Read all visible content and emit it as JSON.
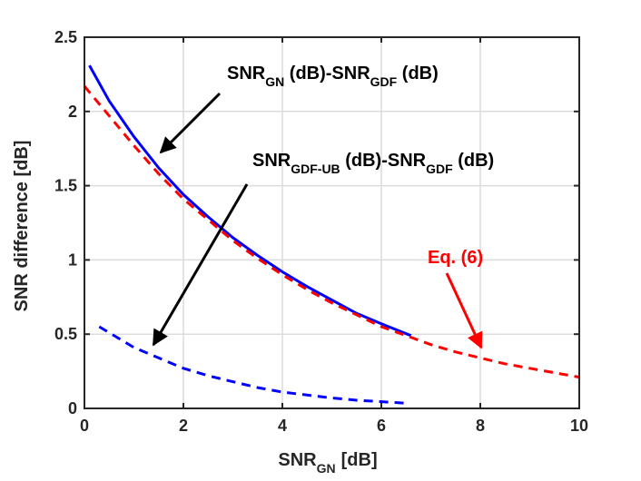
{
  "chart_data": {
    "type": "line",
    "xlim": [
      0,
      10
    ],
    "ylim": [
      0,
      2.5
    ],
    "x_ticks": [
      0,
      2,
      4,
      6,
      8,
      10
    ],
    "y_ticks": [
      0,
      0.5,
      1,
      1.5,
      2,
      2.5
    ],
    "x_tick_labels": [
      "0",
      "2",
      "4",
      "6",
      "8",
      "10"
    ],
    "y_tick_labels": [
      "0",
      "0.5",
      "1",
      "1.5",
      "2",
      "2.5"
    ],
    "xlabel": {
      "main": "SNR",
      "sub": "GN",
      "suffix": "[dB]"
    },
    "ylabel": "SNR difference [dB]",
    "grid": true,
    "series": [
      {
        "id": "gn_minus_gdf",
        "style": "solid",
        "color": "#0000ff",
        "x": [
          0.1,
          0.5,
          1.0,
          1.5,
          2.0,
          2.5,
          3.0,
          3.5,
          4.0,
          4.5,
          5.0,
          5.5,
          6.0,
          6.6
        ],
        "y": [
          2.31,
          2.07,
          1.83,
          1.62,
          1.44,
          1.29,
          1.15,
          1.03,
          0.92,
          0.82,
          0.73,
          0.64,
          0.57,
          0.49
        ]
      },
      {
        "id": "eq6",
        "style": "dashed",
        "color": "#ff0000",
        "x": [
          0,
          0.5,
          1.0,
          1.5,
          2.0,
          2.5,
          3.0,
          3.5,
          4.0,
          4.5,
          5.0,
          5.5,
          6.0,
          6.5,
          7.0,
          7.5,
          8.0,
          8.5,
          9.0,
          9.5,
          10.0
        ],
        "y": [
          2.17,
          1.97,
          1.77,
          1.58,
          1.41,
          1.27,
          1.13,
          1.01,
          0.9,
          0.8,
          0.71,
          0.63,
          0.55,
          0.49,
          0.43,
          0.38,
          0.34,
          0.3,
          0.27,
          0.24,
          0.21
        ]
      },
      {
        "id": "gdfub_minus_gdf",
        "style": "dashed",
        "color": "#0000ff",
        "x": [
          0.3,
          0.7,
          1.0,
          1.5,
          2.0,
          2.5,
          3.0,
          3.5,
          4.0,
          4.5,
          5.0,
          5.5,
          6.0,
          6.5
        ],
        "y": [
          0.55,
          0.47,
          0.41,
          0.34,
          0.27,
          0.22,
          0.18,
          0.14,
          0.11,
          0.09,
          0.07,
          0.055,
          0.045,
          0.035
        ]
      }
    ],
    "annotations": [
      {
        "id": "ann-gn-gdf",
        "color": "#000000",
        "parts": [
          [
            "SNR",
            ""
          ],
          [
            "GN",
            "sub"
          ],
          [
            " (dB)-SNR",
            ""
          ],
          [
            "GDF",
            "sub"
          ],
          [
            " (dB)",
            ""
          ]
        ]
      },
      {
        "id": "ann-ub",
        "color": "#000000",
        "parts": [
          [
            "SNR",
            ""
          ],
          [
            "GDF-UB",
            "sub"
          ],
          [
            " (dB)-SNR",
            ""
          ],
          [
            "GDF",
            "sub"
          ],
          [
            " (dB)",
            ""
          ]
        ]
      },
      {
        "id": "ann-eq6",
        "color": "#ff0000",
        "parts": [
          [
            "Eq. (6)",
            ""
          ]
        ]
      }
    ]
  }
}
